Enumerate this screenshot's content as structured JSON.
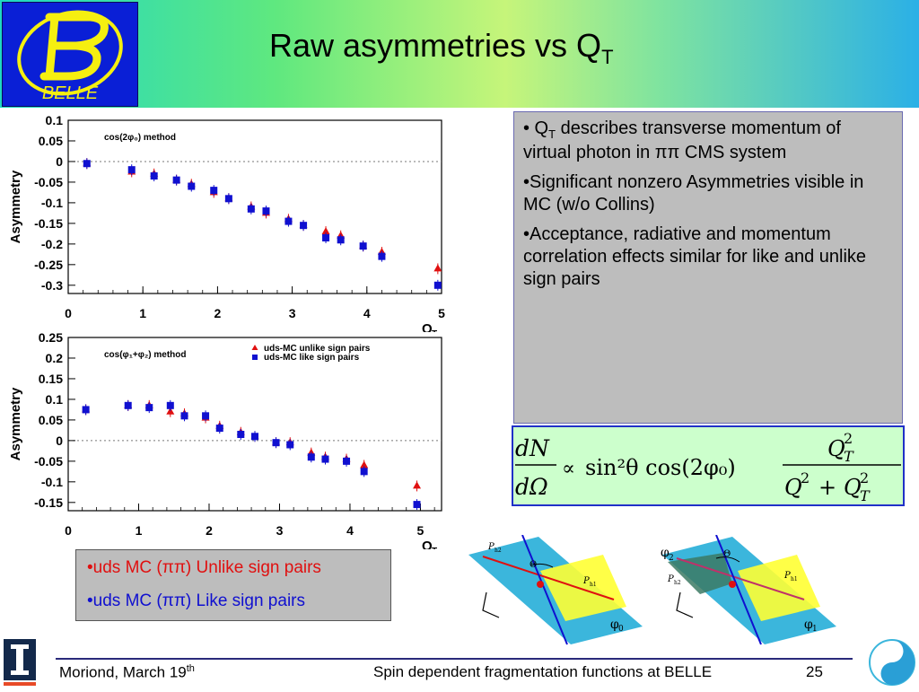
{
  "header": {
    "logo_text": "BELLE",
    "title_main": "Raw asymmetries vs Q",
    "title_sub": "T"
  },
  "chart_data": [
    {
      "type": "scatter",
      "annotation": "cos(2φ₀) method",
      "ylabel": "Asymmetry",
      "xlabel": "Q",
      "xlabel_sub": "T",
      "xlim": [
        0,
        5
      ],
      "ylim": [
        -0.32,
        0.1
      ],
      "xticks": [
        0,
        1,
        2,
        3,
        4,
        5
      ],
      "yticks": [
        0.1,
        0.05,
        0,
        -0.05,
        -0.1,
        -0.15,
        -0.2,
        -0.25,
        -0.3
      ],
      "ytick_labels": [
        "0.1",
        "0.05",
        "0",
        "-0.05",
        "-0.1",
        "-0.15",
        "-0.2",
        "-0.25",
        "-0.3"
      ],
      "grid": false,
      "zero_line": true,
      "series": [
        {
          "marker": "triangle",
          "color": "#e01010",
          "x": [
            0.25,
            0.85,
            1.15,
            1.45,
            1.65,
            1.95,
            2.15,
            2.45,
            2.65,
            2.95,
            3.15,
            3.45,
            3.65,
            3.95,
            4.2,
            4.95
          ],
          "y": [
            -0.005,
            -0.025,
            -0.03,
            -0.045,
            -0.055,
            -0.075,
            -0.09,
            -0.11,
            -0.125,
            -0.14,
            -0.155,
            -0.17,
            -0.18,
            -0.205,
            -0.22,
            -0.26
          ]
        },
        {
          "marker": "square",
          "color": "#1010d0",
          "x": [
            0.25,
            0.85,
            1.15,
            1.45,
            1.65,
            1.95,
            2.15,
            2.45,
            2.65,
            2.95,
            3.15,
            3.45,
            3.65,
            3.95,
            4.2,
            4.95
          ],
          "y": [
            -0.005,
            -0.02,
            -0.035,
            -0.045,
            -0.06,
            -0.07,
            -0.09,
            -0.115,
            -0.12,
            -0.145,
            -0.155,
            -0.185,
            -0.19,
            -0.205,
            -0.23,
            -0.3
          ]
        }
      ]
    },
    {
      "type": "scatter",
      "annotation": "cos(φ₁+φ₂) method",
      "ylabel": "Asymmetry",
      "xlabel": "Q",
      "xlabel_sub": "T",
      "xlim": [
        0,
        5.3
      ],
      "ylim": [
        -0.17,
        0.25
      ],
      "xticks": [
        0,
        1,
        2,
        3,
        4,
        5
      ],
      "yticks": [
        0.25,
        0.2,
        0.15,
        0.1,
        0.05,
        0,
        -0.05,
        -0.1,
        -0.15
      ],
      "ytick_labels": [
        "0.25",
        "0.2",
        "0.15",
        "0.1",
        "0.05",
        "0",
        "-0.05",
        "-0.1",
        "-0.15"
      ],
      "grid": false,
      "zero_line": true,
      "legend": {
        "position": "top-right",
        "entries": [
          "uds-MC unlike sign pairs",
          "uds-MC like sign pairs"
        ]
      },
      "series": [
        {
          "marker": "triangle",
          "color": "#e01010",
          "x": [
            0.25,
            0.85,
            1.15,
            1.45,
            1.65,
            1.95,
            2.15,
            2.45,
            2.65,
            2.95,
            3.15,
            3.45,
            3.65,
            3.95,
            4.2,
            4.95
          ],
          "y": [
            0.075,
            0.085,
            0.085,
            0.07,
            0.065,
            0.055,
            0.035,
            0.02,
            0.01,
            -0.005,
            -0.005,
            -0.03,
            -0.04,
            -0.045,
            -0.06,
            -0.11
          ]
        },
        {
          "marker": "square",
          "color": "#1010d0",
          "x": [
            0.25,
            0.85,
            1.15,
            1.45,
            1.65,
            1.95,
            2.15,
            2.45,
            2.65,
            2.95,
            3.15,
            3.45,
            3.65,
            3.95,
            4.2,
            4.95
          ],
          "y": [
            0.075,
            0.085,
            0.08,
            0.085,
            0.06,
            0.06,
            0.03,
            0.015,
            0.01,
            -0.005,
            -0.01,
            -0.04,
            -0.045,
            -0.05,
            -0.075,
            -0.155
          ]
        }
      ]
    }
  ],
  "bullets": {
    "b1_pre": "• Q",
    "b1_sub": "T",
    "b1_post": " describes transverse momentum of virtual photon in ππ CMS system",
    "b2": "•Significant nonzero Asymmetries visible in MC (w/o Collins)",
    "b3": "•Acceptance, radiative and momentum correlation effects similar for like and unlike sign pairs"
  },
  "formula": {
    "num": "dN",
    "den": "dΩ",
    "prop": "∝",
    "body": "sin²θ cos(2φ₀)",
    "rnum": "Q",
    "rnum_sup": "2",
    "rnum_sub": "T",
    "rden_a": "Q",
    "rden_a_sup": "2",
    "rden_plus": "+",
    "rden_b": "Q",
    "rden_b_sup": "2",
    "rden_b_sub": "T"
  },
  "legend_box": {
    "line1": "•uds MC (ππ) Unlike sign pairs",
    "line2": "•uds MC (ππ)  Like sign pairs"
  },
  "diagrams": {
    "left": {
      "theta": "Θ",
      "p_h2": "P",
      "p_h2_sub": "h2",
      "p_h1": "P",
      "p_h1_sub": "h1",
      "phi": "φ",
      "phi_sub": "0"
    },
    "right": {
      "phi_top": "φ",
      "phi_top_sub": "2",
      "theta": "Θ",
      "p_h2": "P",
      "p_h2_sub": "h2",
      "p_h1": "P",
      "p_h1_sub": "h1",
      "phi": "φ",
      "phi_sub": "1"
    }
  },
  "footer": {
    "left": "Moriond, March 19",
    "left_sup": "th",
    "center": "Spin dependent fragmentation functions at BELLE",
    "page": "25"
  },
  "colors": {
    "unlike": "#e01010",
    "like": "#1010d0",
    "logo_blue": "#0a1fd6",
    "logo_yellow": "#f5ef10"
  }
}
